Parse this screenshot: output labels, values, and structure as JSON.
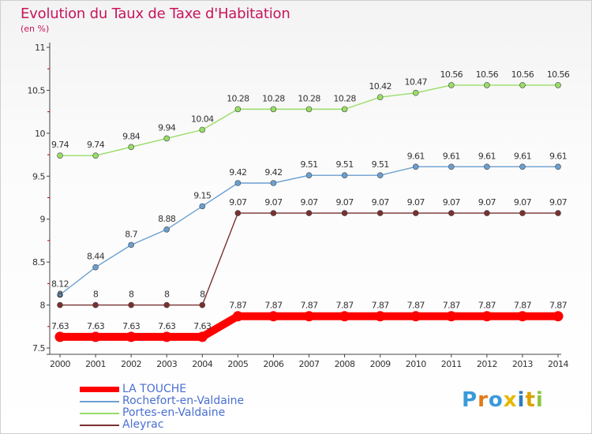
{
  "title": "Evolution du Taux de Taxe d'Habitation",
  "subtitle": "(en %)",
  "logo": {
    "text": "Proxiti"
  },
  "chart_data": {
    "type": "line",
    "title": "Evolution du Taux de Taxe d'Habitation",
    "ylabel": "(en %)",
    "xlabel": "",
    "x": [
      "2000",
      "2001",
      "2002",
      "2003",
      "2004",
      "2005",
      "2006",
      "2007",
      "2008",
      "2009",
      "2010",
      "2011",
      "2012",
      "2013",
      "2014"
    ],
    "ylim": [
      7.5,
      11
    ],
    "yticks": [
      7.5,
      8,
      8.5,
      9,
      9.5,
      10,
      10.5,
      11
    ],
    "ytick_labels": [
      "7.5",
      "8",
      "8.5",
      "9",
      "9.5",
      "10",
      "10.5",
      "11"
    ],
    "grid": false,
    "legend_position": "bottom-left",
    "series": [
      {
        "name": "LA TOUCHE",
        "color": "#ff0000",
        "values": [
          7.63,
          7.63,
          7.63,
          7.63,
          7.63,
          7.87,
          7.87,
          7.87,
          7.87,
          7.87,
          7.87,
          7.87,
          7.87,
          7.87,
          7.87
        ],
        "labels": [
          "7.63",
          "7.63",
          "7.63",
          "7.63",
          "7.63",
          "7.87",
          "7.87",
          "7.87",
          "7.87",
          "7.87",
          "7.87",
          "7.87",
          "7.87",
          "7.87",
          "7.87"
        ]
      },
      {
        "name": "Rochefort-en-Valdaine",
        "color": "#6a9fd0",
        "values": [
          8.12,
          8.44,
          8.7,
          8.88,
          9.15,
          9.42,
          9.42,
          9.51,
          9.51,
          9.51,
          9.61,
          9.61,
          9.61,
          9.61,
          9.61
        ],
        "labels": [
          "8.12",
          "8.44",
          "8.7",
          "8.88",
          "9.15",
          "9.42",
          "9.42",
          "9.51",
          "9.51",
          "9.51",
          "9.61",
          "9.61",
          "9.61",
          "9.61",
          "9.61"
        ]
      },
      {
        "name": "Portes-en-Valdaine",
        "color": "#99dd66",
        "values": [
          9.74,
          9.74,
          9.84,
          9.94,
          10.04,
          10.28,
          10.28,
          10.28,
          10.28,
          10.42,
          10.47,
          10.56,
          10.56,
          10.56,
          10.56
        ],
        "labels": [
          "9.74",
          "9.74",
          "9.84",
          "9.94",
          "10.04",
          "10.28",
          "10.28",
          "10.28",
          "10.28",
          "10.42",
          "10.47",
          "10.56",
          "10.56",
          "10.56",
          "10.56"
        ]
      },
      {
        "name": "Aleyrac",
        "color": "#7a3030",
        "values": [
          8,
          8,
          8,
          8,
          8,
          9.07,
          9.07,
          9.07,
          9.07,
          9.07,
          9.07,
          9.07,
          9.07,
          9.07,
          9.07
        ],
        "labels": [
          "8",
          "8",
          "8",
          "8",
          "8",
          "9.07",
          "9.07",
          "9.07",
          "9.07",
          "9.07",
          "9.07",
          "9.07",
          "9.07",
          "9.07",
          "9.07"
        ]
      }
    ]
  }
}
